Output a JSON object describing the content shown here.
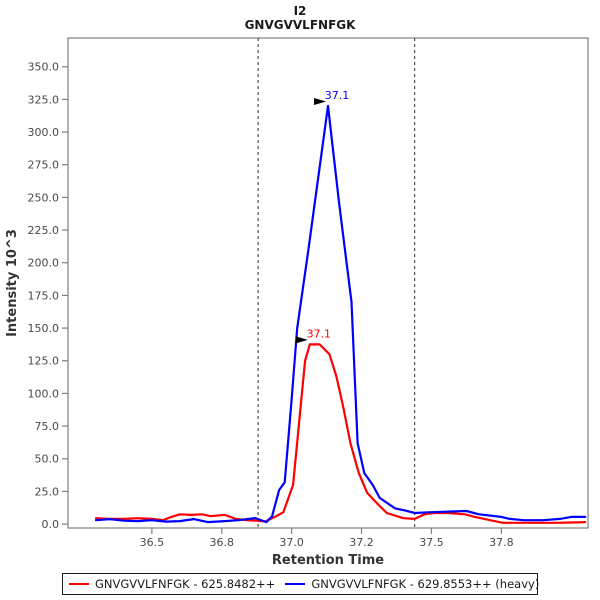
{
  "title": {
    "line1": "I2",
    "line2": "GNVGVVLFNFGK"
  },
  "axes": {
    "x_label": "Retention Time",
    "y_label": "Intensity 10^3"
  },
  "chart_data": {
    "type": "line",
    "title": "I2",
    "subtitle": "GNVGVVLFNFGK",
    "xlabel": "Retention Time",
    "ylabel": "Intensity 10^3",
    "xlim": [
      36.2,
      38.06
    ],
    "ylim": [
      -3,
      372
    ],
    "grid": false,
    "legend_position": "bottom",
    "x_ticks": [
      {
        "value": 36.5,
        "label": "36.5"
      },
      {
        "value": 36.75,
        "label": "36.8"
      },
      {
        "value": 37.0,
        "label": "37.0"
      },
      {
        "value": 37.25,
        "label": "37.2"
      },
      {
        "value": 37.5,
        "label": "37.5"
      },
      {
        "value": 37.75,
        "label": "37.8"
      }
    ],
    "y_ticks": [
      {
        "value": 0,
        "label": "0.0"
      },
      {
        "value": 25,
        "label": "25.0"
      },
      {
        "value": 50,
        "label": "50.0"
      },
      {
        "value": 75,
        "label": "75.0"
      },
      {
        "value": 100,
        "label": "100.0"
      },
      {
        "value": 125,
        "label": "125.0"
      },
      {
        "value": 150,
        "label": "150.0"
      },
      {
        "value": 175,
        "label": "175.0"
      },
      {
        "value": 200,
        "label": "200.0"
      },
      {
        "value": 225,
        "label": "225.0"
      },
      {
        "value": 250,
        "label": "250.0"
      },
      {
        "value": 275,
        "label": "275.0"
      },
      {
        "value": 300,
        "label": "300.0"
      },
      {
        "value": 325,
        "label": "325.0"
      },
      {
        "value": 350,
        "label": "350.0"
      }
    ],
    "integration_boundaries": {
      "start_rt": 36.88,
      "end_rt": 37.44,
      "color": "#2b2b2b",
      "style": "dashed"
    },
    "series": [
      {
        "name": "GNVGVVLFNFGK - 625.8482++",
        "color": "#ff0000",
        "peak_annotation": {
          "label": "37.1",
          "rt": 37.065,
          "intensity": 137.5
        },
        "points": [
          [
            36.3,
            4.5
          ],
          [
            36.35,
            4.0
          ],
          [
            36.4,
            4.0
          ],
          [
            36.45,
            4.5
          ],
          [
            36.5,
            4.0
          ],
          [
            36.54,
            3.0
          ],
          [
            36.57,
            5.5
          ],
          [
            36.6,
            7.5
          ],
          [
            36.64,
            7.0
          ],
          [
            36.68,
            7.5
          ],
          [
            36.71,
            6.0
          ],
          [
            36.76,
            7.0
          ],
          [
            36.8,
            4.0
          ],
          [
            36.84,
            3.0
          ],
          [
            36.88,
            2.5
          ],
          [
            36.905,
            2.0
          ],
          [
            36.94,
            5.5
          ],
          [
            36.97,
            9.0
          ],
          [
            37.005,
            30.0
          ],
          [
            37.035,
            96.0
          ],
          [
            37.048,
            125.0
          ],
          [
            37.065,
            137.5
          ],
          [
            37.1,
            137.5
          ],
          [
            37.135,
            130.0
          ],
          [
            37.16,
            113.0
          ],
          [
            37.185,
            89.0
          ],
          [
            37.21,
            62.0
          ],
          [
            37.24,
            39.0
          ],
          [
            37.27,
            24.0
          ],
          [
            37.305,
            16.0
          ],
          [
            37.34,
            8.5
          ],
          [
            37.4,
            4.5
          ],
          [
            37.44,
            4.0
          ],
          [
            37.475,
            7.5
          ],
          [
            37.51,
            8.5
          ],
          [
            37.56,
            8.5
          ],
          [
            37.62,
            7.5
          ],
          [
            37.655,
            5.5
          ],
          [
            37.71,
            3.0
          ],
          [
            37.755,
            1.0
          ],
          [
            37.85,
            1.0
          ],
          [
            37.95,
            1.0
          ],
          [
            38.0,
            1.2
          ],
          [
            38.05,
            1.5
          ]
        ]
      },
      {
        "name": "GNVGVVLFNFGK - 629.8553++ (heavy)",
        "color": "#0000ff",
        "peak_annotation": {
          "label": "37.1",
          "rt": 37.13,
          "intensity": 320
        },
        "points": [
          [
            36.3,
            3.0
          ],
          [
            36.35,
            3.8
          ],
          [
            36.4,
            2.6
          ],
          [
            36.45,
            2.3
          ],
          [
            36.5,
            3.0
          ],
          [
            36.55,
            1.9
          ],
          [
            36.6,
            2.3
          ],
          [
            36.65,
            3.8
          ],
          [
            36.7,
            1.5
          ],
          [
            36.76,
            2.3
          ],
          [
            36.81,
            3.0
          ],
          [
            36.87,
            4.6
          ],
          [
            36.91,
            1.5
          ],
          [
            36.93,
            6.0
          ],
          [
            36.955,
            26.0
          ],
          [
            36.975,
            32.0
          ],
          [
            37.0,
            96.0
          ],
          [
            37.02,
            150.0
          ],
          [
            37.06,
            210.0
          ],
          [
            37.095,
            265.0
          ],
          [
            37.13,
            320.0
          ],
          [
            37.17,
            245.0
          ],
          [
            37.214,
            170.0
          ],
          [
            37.236,
            62.0
          ],
          [
            37.26,
            39.0
          ],
          [
            37.29,
            30.0
          ],
          [
            37.315,
            20.0
          ],
          [
            37.37,
            12.0
          ],
          [
            37.405,
            10.5
          ],
          [
            37.44,
            8.5
          ],
          [
            37.49,
            9.0
          ],
          [
            37.55,
            9.5
          ],
          [
            37.625,
            10.0
          ],
          [
            37.67,
            7.5
          ],
          [
            37.75,
            5.5
          ],
          [
            37.78,
            4.0
          ],
          [
            37.83,
            3.0
          ],
          [
            37.9,
            3.0
          ],
          [
            37.96,
            4.0
          ],
          [
            38.0,
            5.5
          ],
          [
            38.05,
            5.5
          ]
        ]
      }
    ]
  },
  "legend": {
    "items": [
      {
        "label": "GNVGVVLFNFGK - 625.8482++",
        "color": "#ff0000"
      },
      {
        "label": "GNVGVVLFNFGK - 629.8553++ (heavy)",
        "color": "#0000ff"
      }
    ]
  },
  "style": {
    "axis_color": "#808080",
    "annotation_arrow_color": "#000000"
  }
}
